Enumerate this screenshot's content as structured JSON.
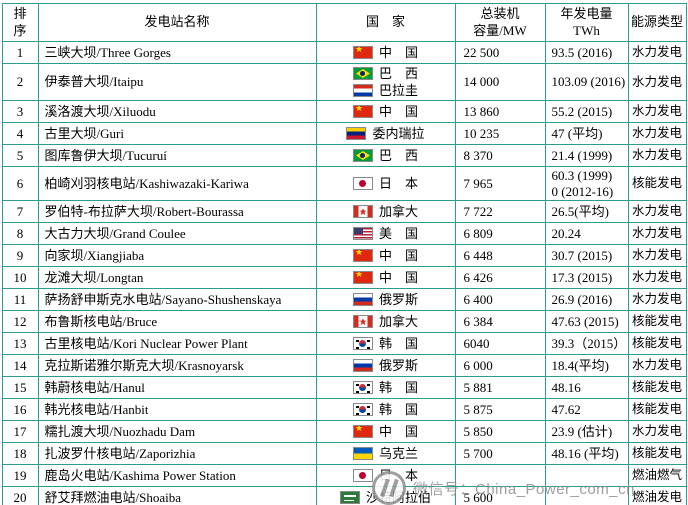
{
  "page": {
    "accent_border_color": "#2a9d8f",
    "watermark": {
      "text": "微信号：China_Power_com_cn",
      "color": "#919191"
    }
  },
  "table": {
    "headers": [
      "排\n序",
      "发电站名称",
      "国　家",
      "总装机\n容量/MW",
      "年发电量\nTWh",
      "能源类型"
    ],
    "rows": [
      {
        "rank": "1",
        "name": "三峡大坝/Three Gorges",
        "countries": [
          {
            "flag": "china",
            "label": "中　国"
          }
        ],
        "capacity": "22 500",
        "generation": "93.5 (2016)",
        "type": "水力发电"
      },
      {
        "rank": "2",
        "name": "伊泰普大坝/Itaipu",
        "countries": [
          {
            "flag": "brazil",
            "label": "巴　西"
          },
          {
            "flag": "paraguay",
            "label": "巴拉圭"
          }
        ],
        "capacity": "14 000",
        "generation": "103.09 (2016)",
        "type": "水力发电"
      },
      {
        "rank": "3",
        "name": "溪洛渡大坝/Xiluodu",
        "countries": [
          {
            "flag": "china",
            "label": "中　国"
          }
        ],
        "capacity": "13 860",
        "generation": "55.2 (2015)",
        "type": "水力发电"
      },
      {
        "rank": "4",
        "name": "古里大坝/Guri",
        "countries": [
          {
            "flag": "venezuela",
            "label": "委内瑞拉"
          }
        ],
        "capacity": "10 235",
        "generation": "47 (平均)",
        "type": "水力发电"
      },
      {
        "rank": "5",
        "name": "图库鲁伊大坝/Tucuruí",
        "countries": [
          {
            "flag": "brazil",
            "label": "巴　西"
          }
        ],
        "capacity": "8 370",
        "generation": "21.4 (1999)",
        "type": "水力发电"
      },
      {
        "rank": "6",
        "name": "柏崎刈羽核电站/Kashiwazaki-Kariwa",
        "countries": [
          {
            "flag": "japan",
            "label": "日　本"
          }
        ],
        "capacity": "7 965",
        "generation": "60.3 (1999)\n0 (2012-16)",
        "type": "核能发电"
      },
      {
        "rank": "7",
        "name": "罗伯特-布拉萨大坝/Robert-Bourassa",
        "countries": [
          {
            "flag": "canada",
            "label": "加拿大"
          }
        ],
        "capacity": "7 722",
        "generation": "26.5(平均)",
        "type": "水力发电"
      },
      {
        "rank": "8",
        "name": "大古力大坝/Grand Coulee",
        "countries": [
          {
            "flag": "usa",
            "label": "美　国"
          }
        ],
        "capacity": "6 809",
        "generation": "20.24",
        "type": "水力发电"
      },
      {
        "rank": "9",
        "name": "向家坝/Xiangjiaba",
        "countries": [
          {
            "flag": "china",
            "label": "中　国"
          }
        ],
        "capacity": "6 448",
        "generation": "30.7 (2015)",
        "type": "水力发电"
      },
      {
        "rank": "10",
        "name": "龙滩大坝/Longtan",
        "countries": [
          {
            "flag": "china",
            "label": "中　国"
          }
        ],
        "capacity": "6 426",
        "generation": "17.3 (2015)",
        "type": "水力发电"
      },
      {
        "rank": "11",
        "name": "萨扬舒申斯克水电站/Sayano-Shushenskaya",
        "countries": [
          {
            "flag": "russia",
            "label": "俄罗斯"
          }
        ],
        "capacity": "6 400",
        "generation": "26.9 (2016)",
        "type": "水力发电"
      },
      {
        "rank": "12",
        "name": "布鲁斯核电站/Bruce",
        "countries": [
          {
            "flag": "canada",
            "label": "加拿大"
          }
        ],
        "capacity": "6 384",
        "generation": "47.63 (2015)",
        "type": "核能发电"
      },
      {
        "rank": "13",
        "name": "古里核电站/Kori Nuclear Power Plant",
        "countries": [
          {
            "flag": "korea",
            "label": "韩　国"
          }
        ],
        "capacity": "6040",
        "generation": "39.3（2015）",
        "type": "核能发电"
      },
      {
        "rank": "14",
        "name": "克拉斯诺雅尔斯克大坝/Krasnoyarsk",
        "countries": [
          {
            "flag": "russia",
            "label": "俄罗斯"
          }
        ],
        "capacity": "6 000",
        "generation": "18.4(平均)",
        "type": "水力发电"
      },
      {
        "rank": "15",
        "name": "韩蔚核电站/Hanul",
        "countries": [
          {
            "flag": "korea",
            "label": "韩　国"
          }
        ],
        "capacity": "5 881",
        "generation": "48.16",
        "type": "核能发电"
      },
      {
        "rank": "16",
        "name": "韩光核电站/Hanbit",
        "countries": [
          {
            "flag": "korea",
            "label": "韩　国"
          }
        ],
        "capacity": "5 875",
        "generation": "47.62",
        "type": "核能发电"
      },
      {
        "rank": "17",
        "name": "糯扎渡大坝/Nuozhadu Dam",
        "countries": [
          {
            "flag": "china",
            "label": "中　国"
          }
        ],
        "capacity": "5 850",
        "generation": "23.9 (估计)",
        "type": "水力发电"
      },
      {
        "rank": "18",
        "name": "扎波罗什核电站/Zaporizhia",
        "countries": [
          {
            "flag": "ukraine",
            "label": "乌克兰"
          }
        ],
        "capacity": "5 700",
        "generation": "48.16 (平均)",
        "type": "核能发电"
      },
      {
        "rank": "19",
        "name": "鹿岛火电站/Kashima Power Station",
        "countries": [
          {
            "flag": "japan",
            "label": "日　本"
          }
        ],
        "capacity": "",
        "generation": "",
        "type": "燃油燃气"
      },
      {
        "rank": "20",
        "name": "舒艾拜燃油电站/Shoaiba",
        "countries": [
          {
            "flag": "saudi",
            "label": "沙特阿拉伯"
          }
        ],
        "capacity": "5 600",
        "generation": "",
        "type": "燃油发电"
      }
    ]
  }
}
